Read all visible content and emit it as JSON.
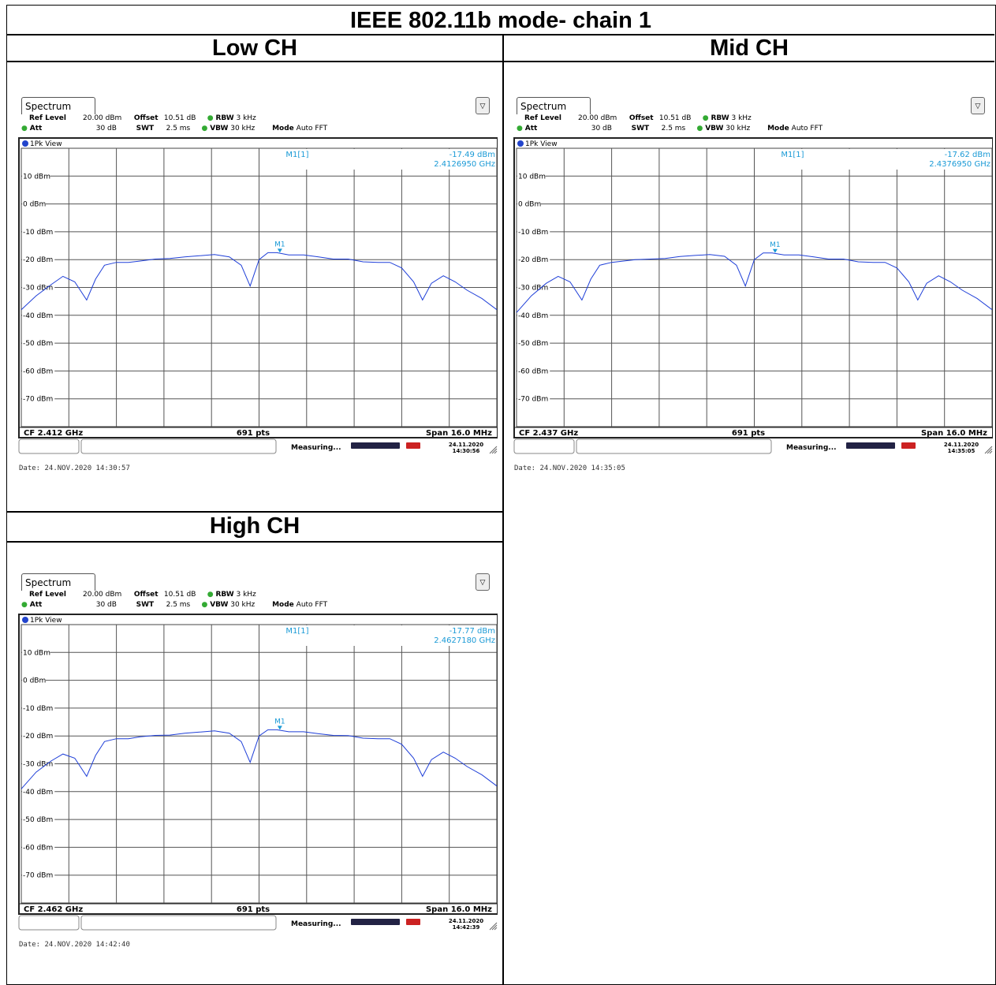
{
  "title": "IEEE 802.11b mode- chain 1",
  "panels": [
    {
      "header": "Low CH",
      "tab": "Spectrum",
      "settings": {
        "ref_level_label": "Ref Level",
        "ref_level": "20.00 dBm",
        "offset_label": "Offset",
        "offset": "10.51 dB",
        "rbw_label": "RBW",
        "rbw": "3 kHz",
        "att_label": "Att",
        "att": "30 dB",
        "swt_label": "SWT",
        "swt": "2.5 ms",
        "vbw_label": "VBW",
        "vbw": "30 kHz",
        "mode_label": "Mode",
        "mode": "Auto FFT"
      },
      "view_label": "1Pk View",
      "marker_name": "M1[1]",
      "marker_level": "-17.49 dBm",
      "marker_freq": "2.4126950 GHz",
      "marker_tag": "M1",
      "cf": "CF 2.412 GHz",
      "pts": "691 pts",
      "span": "Span 16.0 MHz",
      "status": "Measuring...",
      "status_date": "24.11.2020",
      "status_time": "14:30:56",
      "footer_date": "Date: 24.NOV.2020  14:30:57"
    },
    {
      "header": "Mid CH",
      "tab": "Spectrum",
      "settings": {
        "ref_level_label": "Ref Level",
        "ref_level": "20.00 dBm",
        "offset_label": "Offset",
        "offset": "10.51 dB",
        "rbw_label": "RBW",
        "rbw": "3 kHz",
        "att_label": "Att",
        "att": "30 dB",
        "swt_label": "SWT",
        "swt": "2.5 ms",
        "vbw_label": "VBW",
        "vbw": "30 kHz",
        "mode_label": "Mode",
        "mode": "Auto FFT"
      },
      "view_label": "1Pk View",
      "marker_name": "M1[1]",
      "marker_level": "-17.62 dBm",
      "marker_freq": "2.4376950 GHz",
      "marker_tag": "M1",
      "cf": "CF 2.437 GHz",
      "pts": "691 pts",
      "span": "Span 16.0 MHz",
      "status": "Measuring...",
      "status_date": "24.11.2020",
      "status_time": "14:35:05",
      "footer_date": "Date: 24.NOV.2020  14:35:05"
    },
    {
      "header": "High CH",
      "tab": "Spectrum",
      "settings": {
        "ref_level_label": "Ref Level",
        "ref_level": "20.00 dBm",
        "offset_label": "Offset",
        "offset": "10.51 dB",
        "rbw_label": "RBW",
        "rbw": "3 kHz",
        "att_label": "Att",
        "att": "30 dB",
        "swt_label": "SWT",
        "swt": "2.5 ms",
        "vbw_label": "VBW",
        "vbw": "30 kHz",
        "mode_label": "Mode",
        "mode": "Auto FFT"
      },
      "view_label": "1Pk View",
      "marker_name": "M1[1]",
      "marker_level": "-17.77 dBm",
      "marker_freq": "2.4627180 GHz",
      "marker_tag": "M1",
      "cf": "CF 2.462 GHz",
      "pts": "691 pts",
      "span": "Span 16.0 MHz",
      "status": "Measuring...",
      "status_date": "24.11.2020",
      "status_time": "14:42:39",
      "footer_date": "Date: 24.NOV.2020  14:42:40"
    }
  ],
  "chart_data": [
    {
      "type": "line",
      "title": "Low CH",
      "xlabel": "",
      "ylabel": "",
      "x_unit": "MHz offset from CF",
      "xlim": [
        -8,
        8
      ],
      "ylim": [
        -80,
        20
      ],
      "y_ticks": [
        "10 dBm",
        "0 dBm",
        "-10 dBm",
        "-20 dBm",
        "-30 dBm",
        "-40 dBm",
        "-50 dBm",
        "-60 dBm",
        "-70 dBm"
      ],
      "series": [
        {
          "x": [
            -8,
            -7.5,
            -7,
            -6.6,
            -6.2,
            -5.8,
            -5.5,
            -5.2,
            -4.8,
            -4.4,
            -4,
            -3.5,
            -3,
            -2.5,
            -2,
            -1.5,
            -1,
            -0.6,
            -0.3,
            0,
            0.3,
            0.6,
            1,
            1.5,
            2,
            2.5,
            3,
            3.5,
            4,
            4.4,
            4.8,
            5.2,
            5.5,
            5.8,
            6.2,
            6.6,
            7,
            7.5,
            8
          ],
          "y": [
            -38,
            -33,
            -29,
            -26,
            -28,
            -34.5,
            -27,
            -22,
            -21,
            -21,
            -20.5,
            -19.8,
            -19.6,
            -19,
            -18.6,
            -18.2,
            -19,
            -22,
            -29.5,
            -20,
            -17.5,
            -17.5,
            -18.3,
            -18.3,
            -19,
            -19.8,
            -19.8,
            -20.8,
            -21,
            -21,
            -23,
            -28,
            -34.5,
            -28.5,
            -25.8,
            -28,
            -31,
            -34,
            -38
          ]
        }
      ],
      "marker": {
        "x": 0.7,
        "y": -17.49
      }
    },
    {
      "type": "line",
      "title": "Mid CH",
      "xlabel": "",
      "ylabel": "",
      "x_unit": "MHz offset from CF",
      "xlim": [
        -8,
        8
      ],
      "ylim": [
        -80,
        20
      ],
      "y_ticks": [
        "10 dBm",
        "0 dBm",
        "-10 dBm",
        "-20 dBm",
        "-30 dBm",
        "-40 dBm",
        "-50 dBm",
        "-60 dBm",
        "-70 dBm"
      ],
      "series": [
        {
          "x": [
            -8,
            -7.5,
            -7,
            -6.6,
            -6.2,
            -5.8,
            -5.5,
            -5.2,
            -4.8,
            -4.4,
            -4,
            -3.5,
            -3,
            -2.5,
            -2,
            -1.5,
            -1,
            -0.6,
            -0.3,
            0,
            0.3,
            0.6,
            1,
            1.5,
            2,
            2.5,
            3,
            3.5,
            4,
            4.4,
            4.8,
            5.2,
            5.5,
            5.8,
            6.2,
            6.6,
            7,
            7.5,
            8
          ],
          "y": [
            -39,
            -33,
            -28.5,
            -26,
            -28,
            -34.5,
            -27,
            -22,
            -21,
            -20.5,
            -20,
            -19.8,
            -19.6,
            -18.9,
            -18.5,
            -18.2,
            -18.8,
            -22,
            -29.5,
            -20,
            -17.6,
            -17.6,
            -18.3,
            -18.3,
            -19,
            -19.8,
            -19.8,
            -20.8,
            -21,
            -21,
            -23,
            -28,
            -34.5,
            -28.5,
            -25.8,
            -28,
            -31,
            -34,
            -38
          ]
        }
      ],
      "marker": {
        "x": 0.7,
        "y": -17.62
      }
    },
    {
      "type": "line",
      "title": "High CH",
      "xlabel": "",
      "ylabel": "",
      "x_unit": "MHz offset from CF",
      "xlim": [
        -8,
        8
      ],
      "ylim": [
        -80,
        20
      ],
      "y_ticks": [
        "10 dBm",
        "0 dBm",
        "-10 dBm",
        "-20 dBm",
        "-30 dBm",
        "-40 dBm",
        "-50 dBm",
        "-60 dBm",
        "-70 dBm"
      ],
      "series": [
        {
          "x": [
            -8,
            -7.5,
            -7,
            -6.6,
            -6.2,
            -5.8,
            -5.5,
            -5.2,
            -4.8,
            -4.4,
            -4,
            -3.5,
            -3,
            -2.5,
            -2,
            -1.5,
            -1,
            -0.6,
            -0.3,
            0,
            0.3,
            0.6,
            1,
            1.5,
            2,
            2.5,
            3,
            3.5,
            4,
            4.4,
            4.8,
            5.2,
            5.5,
            5.8,
            6.2,
            6.6,
            7,
            7.5,
            8
          ],
          "y": [
            -39,
            -33,
            -29,
            -26.5,
            -28,
            -34.5,
            -27,
            -22,
            -21,
            -21,
            -20.3,
            -19.8,
            -19.7,
            -19,
            -18.6,
            -18.2,
            -19,
            -22,
            -29.5,
            -20,
            -17.8,
            -17.8,
            -18.5,
            -18.5,
            -19.2,
            -19.8,
            -19.9,
            -20.8,
            -21,
            -21,
            -23,
            -28,
            -34.5,
            -28.5,
            -25.8,
            -28,
            -31,
            -34,
            -38
          ]
        }
      ],
      "marker": {
        "x": 0.7,
        "y": -17.77
      }
    }
  ],
  "colors": {
    "trace": "#1f3fd8",
    "marker_text": "#1a9ad6",
    "grid": "#444444"
  }
}
